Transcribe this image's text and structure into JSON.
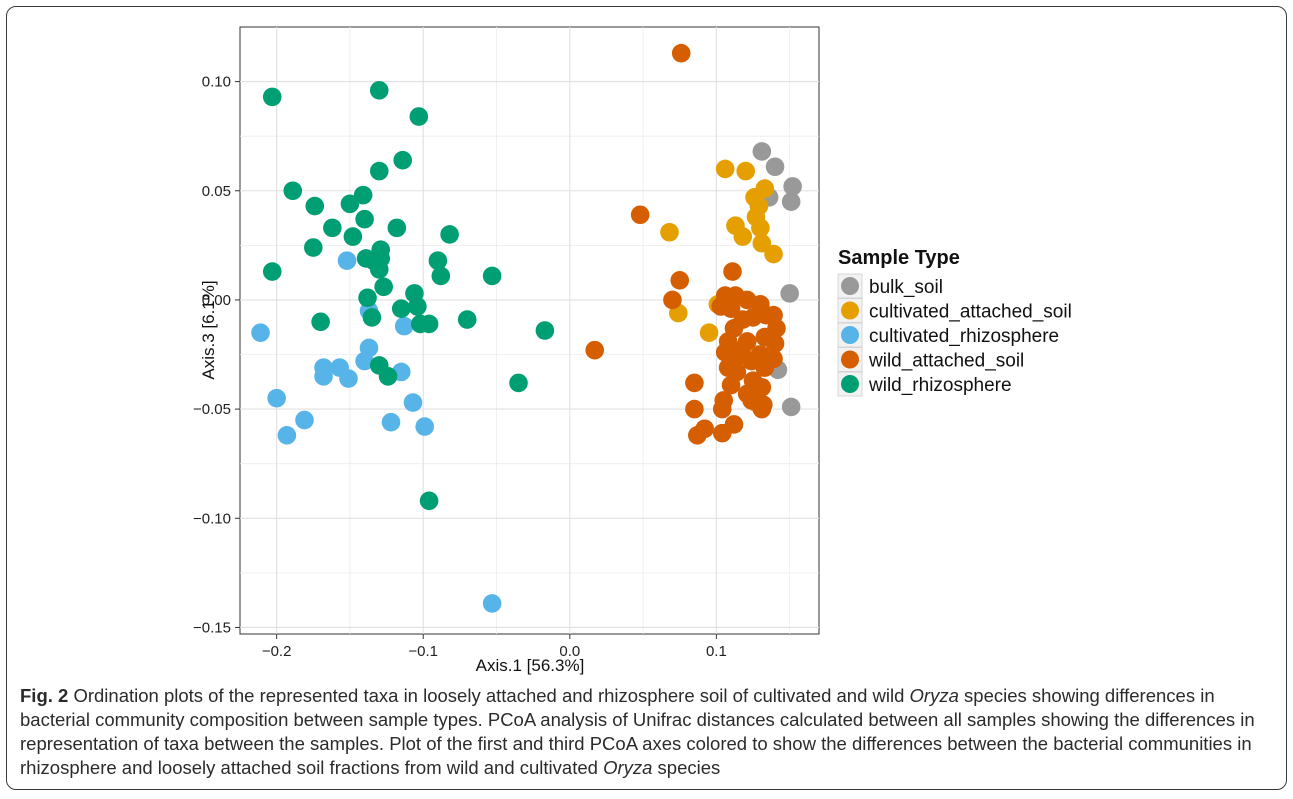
{
  "caption": {
    "label": "Fig. 2",
    "text_before": " Ordination plots of the represented taxa in loosely attached and rhizosphere soil of cultivated and wild ",
    "italic1": "Oryza",
    "text_middle": " species showing differences in bacterial community composition between sample types. PCoA analysis of Unifrac distances calculated between all samples showing the differences in representation of taxa between the samples. Plot of the first and third PCoA axes colored to show the differences between the bacterial communities in rhizosphere and loosely attached soil fractions from wild and cultivated ",
    "italic2": "Oryza",
    "text_after": " species"
  },
  "chart_data": {
    "type": "scatter",
    "xlabel": "Axis.1   [56.3%]",
    "ylabel": "Axis.3   [6.1%]",
    "xlim": [
      -0.225,
      0.17
    ],
    "ylim": [
      -0.153,
      0.125
    ],
    "xticks": [
      -0.2,
      -0.1,
      0.0,
      0.1
    ],
    "xtick_labels": [
      "−0.2",
      "−0.1",
      "0.0",
      "0.1"
    ],
    "yticks": [
      -0.15,
      -0.1,
      -0.05,
      0.0,
      0.05,
      0.1
    ],
    "ytick_labels": [
      "−0.15",
      "−0.10",
      "−0.05",
      "0.00",
      "0.05",
      "0.10"
    ],
    "grid": true,
    "legend_title": "Sample Type",
    "legend_position": "right",
    "series": [
      {
        "name": "bulk_soil",
        "color": "#999999",
        "points": [
          [
            0.131,
            0.068
          ],
          [
            0.14,
            0.061
          ],
          [
            0.152,
            0.052
          ],
          [
            0.136,
            0.047
          ],
          [
            0.151,
            0.045
          ],
          [
            0.129,
            0.043
          ],
          [
            0.15,
            0.003
          ],
          [
            0.142,
            -0.032
          ],
          [
            0.126,
            -0.044
          ],
          [
            0.151,
            -0.049
          ]
        ]
      },
      {
        "name": "cultivated_attached_soil",
        "color": "#E69F00",
        "points": [
          [
            0.106,
            0.06
          ],
          [
            0.12,
            0.059
          ],
          [
            0.133,
            0.051
          ],
          [
            0.126,
            0.047
          ],
          [
            0.129,
            0.043
          ],
          [
            0.127,
            0.038
          ],
          [
            0.113,
            0.034
          ],
          [
            0.118,
            0.029
          ],
          [
            0.13,
            0.033
          ],
          [
            0.131,
            0.026
          ],
          [
            0.139,
            0.021
          ],
          [
            0.068,
            0.031
          ],
          [
            0.074,
            -0.006
          ],
          [
            0.101,
            -0.002
          ],
          [
            0.095,
            -0.015
          ],
          [
            0.128,
            -0.025
          ],
          [
            0.127,
            -0.047
          ]
        ]
      },
      {
        "name": "cultivated_rhizosphere",
        "color": "#56B4E9",
        "points": [
          [
            -0.211,
            -0.015
          ],
          [
            -0.152,
            0.018
          ],
          [
            -0.137,
            -0.005
          ],
          [
            -0.113,
            -0.012
          ],
          [
            -0.137,
            -0.022
          ],
          [
            -0.168,
            -0.031
          ],
          [
            -0.157,
            -0.031
          ],
          [
            -0.14,
            -0.028
          ],
          [
            -0.115,
            -0.033
          ],
          [
            -0.168,
            -0.035
          ],
          [
            -0.151,
            -0.036
          ],
          [
            -0.2,
            -0.045
          ],
          [
            -0.181,
            -0.055
          ],
          [
            -0.122,
            -0.056
          ],
          [
            -0.107,
            -0.047
          ],
          [
            -0.099,
            -0.058
          ],
          [
            -0.193,
            -0.062
          ],
          [
            -0.053,
            -0.139
          ]
        ]
      },
      {
        "name": "wild_attached_soil",
        "color": "#D55E00",
        "points": [
          [
            0.076,
            0.113
          ],
          [
            0.048,
            0.039
          ],
          [
            0.075,
            0.009
          ],
          [
            0.07,
            0.0
          ],
          [
            0.017,
            -0.023
          ],
          [
            0.111,
            0.013
          ],
          [
            0.106,
            0.002
          ],
          [
            0.113,
            0.002
          ],
          [
            0.121,
            0.0
          ],
          [
            0.103,
            -0.003
          ],
          [
            0.11,
            -0.004
          ],
          [
            0.13,
            -0.002
          ],
          [
            0.134,
            -0.007
          ],
          [
            0.139,
            -0.007
          ],
          [
            0.118,
            -0.009
          ],
          [
            0.125,
            -0.008
          ],
          [
            0.112,
            -0.013
          ],
          [
            0.141,
            -0.013
          ],
          [
            0.108,
            -0.019
          ],
          [
            0.121,
            -0.019
          ],
          [
            0.133,
            -0.017
          ],
          [
            0.117,
            -0.023
          ],
          [
            0.14,
            -0.02
          ],
          [
            0.106,
            -0.024
          ],
          [
            0.13,
            -0.025
          ],
          [
            0.112,
            -0.028
          ],
          [
            0.124,
            -0.028
          ],
          [
            0.139,
            -0.027
          ],
          [
            0.108,
            -0.031
          ],
          [
            0.114,
            -0.033
          ],
          [
            0.133,
            -0.031
          ],
          [
            0.125,
            -0.037
          ],
          [
            0.085,
            -0.038
          ],
          [
            0.11,
            -0.039
          ],
          [
            0.131,
            -0.04
          ],
          [
            0.121,
            -0.043
          ],
          [
            0.124,
            -0.046
          ],
          [
            0.105,
            -0.046
          ],
          [
            0.132,
            -0.048
          ],
          [
            0.104,
            -0.05
          ],
          [
            0.085,
            -0.05
          ],
          [
            0.131,
            -0.05
          ],
          [
            0.092,
            -0.059
          ],
          [
            0.104,
            -0.061
          ],
          [
            0.112,
            -0.057
          ],
          [
            0.087,
            -0.062
          ]
        ]
      },
      {
        "name": "wild_rhizosphere",
        "color": "#009E73",
        "points": [
          [
            -0.203,
            0.093
          ],
          [
            -0.13,
            0.096
          ],
          [
            -0.103,
            0.084
          ],
          [
            -0.114,
            0.064
          ],
          [
            -0.13,
            0.059
          ],
          [
            -0.189,
            0.05
          ],
          [
            -0.174,
            0.043
          ],
          [
            -0.141,
            0.048
          ],
          [
            -0.15,
            0.044
          ],
          [
            -0.162,
            0.033
          ],
          [
            -0.148,
            0.029
          ],
          [
            -0.14,
            0.037
          ],
          [
            -0.175,
            0.024
          ],
          [
            -0.118,
            0.033
          ],
          [
            -0.129,
            0.023
          ],
          [
            -0.082,
            0.03
          ],
          [
            -0.129,
            0.019
          ],
          [
            -0.139,
            0.019
          ],
          [
            -0.134,
            0.018
          ],
          [
            -0.203,
            0.013
          ],
          [
            -0.13,
            0.014
          ],
          [
            -0.09,
            0.018
          ],
          [
            -0.088,
            0.011
          ],
          [
            -0.127,
            0.006
          ],
          [
            -0.053,
            0.011
          ],
          [
            -0.138,
            0.001
          ],
          [
            -0.106,
            0.003
          ],
          [
            -0.104,
            -0.003
          ],
          [
            -0.115,
            -0.004
          ],
          [
            -0.135,
            -0.008
          ],
          [
            -0.17,
            -0.01
          ],
          [
            -0.102,
            -0.011
          ],
          [
            -0.096,
            -0.011
          ],
          [
            -0.07,
            -0.009
          ],
          [
            -0.017,
            -0.014
          ],
          [
            -0.13,
            -0.03
          ],
          [
            -0.124,
            -0.035
          ],
          [
            -0.035,
            -0.038
          ],
          [
            -0.096,
            -0.092
          ]
        ]
      }
    ]
  }
}
